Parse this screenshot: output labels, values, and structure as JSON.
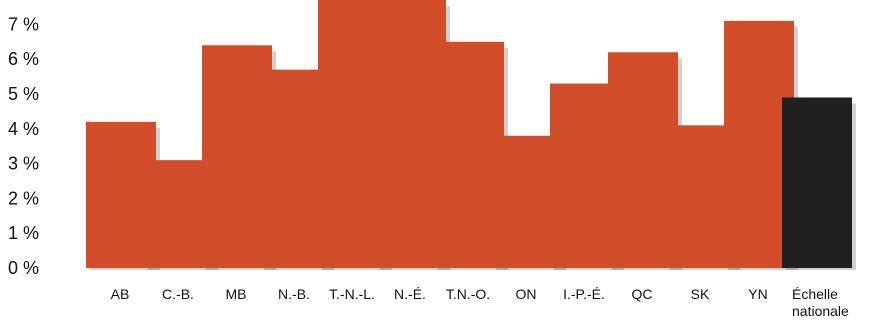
{
  "chart_data": {
    "type": "bar",
    "categories": [
      "AB",
      "C.-B.",
      "MB",
      "N.-B.",
      "T.-N.-L.",
      "N.-É.",
      "T.N.-O.",
      "ON",
      "I.-P.-É.",
      "QC",
      "SK",
      "YN",
      "Échelle nationale"
    ],
    "values": [
      4.2,
      3.1,
      6.4,
      5.7,
      8.0,
      8.0,
      6.5,
      3.8,
      5.3,
      6.2,
      4.1,
      7.1,
      4.9
    ],
    "y_tick_labels": [
      "0 %",
      "1 %",
      "2 %",
      "3 %",
      "4 %",
      "5 %",
      "6 %",
      "7 %"
    ],
    "y_ticks": [
      0,
      1,
      2,
      3,
      4,
      5,
      6,
      7
    ],
    "ylim": [
      0,
      7.6
    ],
    "grid": false,
    "legend": "none",
    "colors": {
      "province_bar": "#D24E2A",
      "national_bar": "#221F20"
    }
  }
}
